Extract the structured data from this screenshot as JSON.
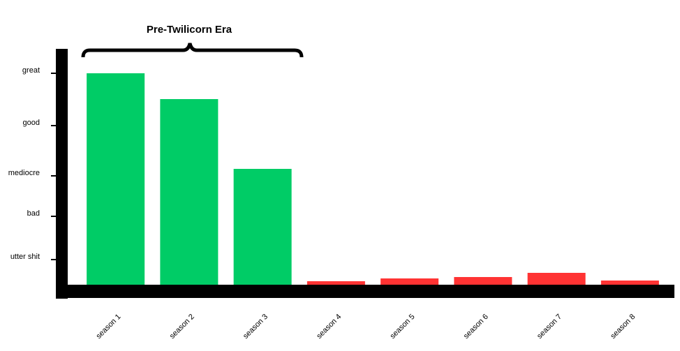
{
  "chart_data": {
    "type": "bar",
    "annotation": "Pre-Twilicorn Era",
    "categories": [
      "season 1",
      "season 2",
      "season 3",
      "season 4",
      "season 5",
      "season 6",
      "season 7",
      "season 8"
    ],
    "values": [
      303,
      266,
      166,
      5,
      9,
      11,
      17,
      6
    ],
    "colors": [
      "#00cc66",
      "#00cc66",
      "#00cc66",
      "#ff3333",
      "#ff3333",
      "#ff3333",
      "#ff3333",
      "#ff3333"
    ],
    "ylim": [
      0,
      338
    ],
    "yticks": [
      {
        "value": 36,
        "label": "utter shit"
      },
      {
        "value": 98,
        "label": "bad"
      },
      {
        "value": 156,
        "label": "mediocre"
      },
      {
        "value": 228,
        "label": "good"
      },
      {
        "value": 303,
        "label": "great"
      }
    ],
    "grid": false
  }
}
